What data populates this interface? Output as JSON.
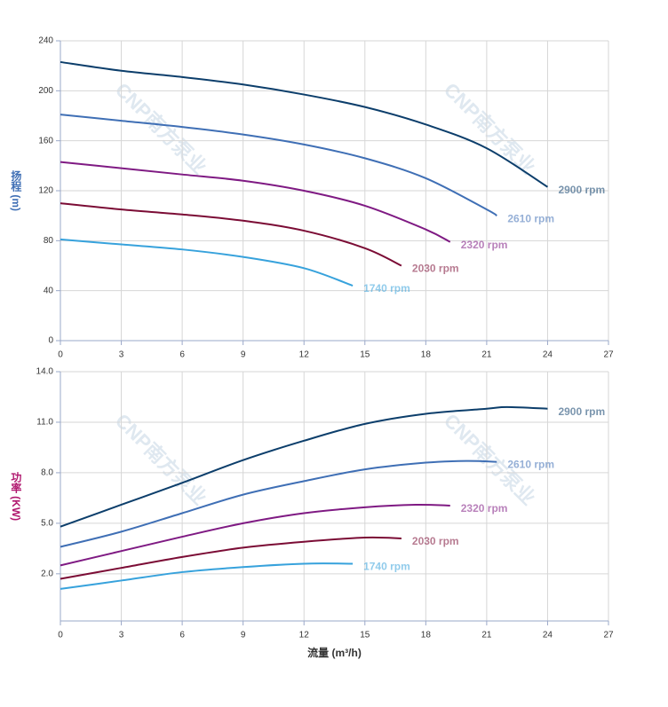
{
  "chart_data": [
    {
      "type": "line",
      "y_label": "扬程 (m)",
      "y_label_color": "#3f6fb5",
      "watermark": "CNP南方泵业",
      "xlim": [
        0,
        27
      ],
      "xticks": [
        0,
        3,
        6,
        9,
        12,
        15,
        18,
        21,
        24,
        27
      ],
      "ylim": [
        0,
        240
      ],
      "yticks": [
        0,
        40,
        80,
        120,
        160,
        200,
        240
      ],
      "grid": true,
      "series": [
        {
          "name": "2900 rpm",
          "color": "#0c3e6b",
          "x": [
            0,
            3,
            6,
            9,
            12,
            15,
            18,
            21,
            24
          ],
          "values": [
            223,
            216,
            211,
            205,
            197,
            187,
            173,
            154,
            123
          ]
        },
        {
          "name": "2610 rpm",
          "color": "#3f6fb5",
          "x": [
            0,
            3,
            6,
            9,
            12,
            15,
            18,
            21,
            21.5
          ],
          "values": [
            181,
            176,
            171,
            165,
            157,
            146,
            130,
            105,
            100
          ]
        },
        {
          "name": "2320 rpm",
          "color": "#7f1a83",
          "x": [
            0,
            3,
            6,
            9,
            12,
            15,
            18,
            19.2
          ],
          "values": [
            143,
            138,
            133,
            128,
            120,
            108,
            89,
            79
          ]
        },
        {
          "name": "2030 rpm",
          "color": "#7b0c35",
          "x": [
            0,
            3,
            6,
            9,
            12,
            15,
            16.8
          ],
          "values": [
            110,
            105,
            101,
            96,
            88,
            74,
            60
          ]
        },
        {
          "name": "1740 rpm",
          "color": "#37a2dc",
          "x": [
            0,
            3,
            6,
            9,
            12,
            14.4
          ],
          "values": [
            81,
            77,
            73,
            67,
            58,
            44
          ]
        }
      ]
    },
    {
      "type": "line",
      "y_label": "功率 (KW)",
      "y_label_color": "#b0186f",
      "x_label": "流量 (m³/h)",
      "watermark": "CNP南方泵业",
      "xlim": [
        0,
        27
      ],
      "xticks": [
        0,
        3,
        6,
        9,
        12,
        15,
        18,
        21,
        24,
        27
      ],
      "ylim": [
        -0.8,
        14
      ],
      "yticks": [
        {
          "value": 2,
          "label": "2.0"
        },
        {
          "value": 5,
          "label": "5.0"
        },
        {
          "value": 8,
          "label": "8.0"
        },
        {
          "value": 11,
          "label": "11.0"
        },
        {
          "value": 14,
          "label": "14.0"
        }
      ],
      "grid": true,
      "series": [
        {
          "name": "2900 rpm",
          "color": "#0c3e6b",
          "x": [
            0,
            3,
            6,
            9,
            12,
            15,
            18,
            21,
            22,
            24
          ],
          "values": [
            4.8,
            6.1,
            7.4,
            8.75,
            9.9,
            10.9,
            11.5,
            11.8,
            11.9,
            11.8
          ]
        },
        {
          "name": "2610 rpm",
          "color": "#3f6fb5",
          "x": [
            0,
            3,
            6,
            9,
            12,
            15,
            18,
            20,
            21.5
          ],
          "values": [
            3.6,
            4.5,
            5.6,
            6.7,
            7.5,
            8.2,
            8.6,
            8.7,
            8.65
          ]
        },
        {
          "name": "2320 rpm",
          "color": "#7f1a83",
          "x": [
            0,
            3,
            6,
            9,
            12,
            15,
            17.5,
            19.2
          ],
          "values": [
            2.5,
            3.35,
            4.2,
            5.0,
            5.6,
            5.95,
            6.1,
            6.05
          ]
        },
        {
          "name": "2030 rpm",
          "color": "#7b0c35",
          "x": [
            0,
            3,
            6,
            9,
            12,
            15,
            16.8
          ],
          "values": [
            1.7,
            2.35,
            3.0,
            3.55,
            3.9,
            4.15,
            4.1
          ]
        },
        {
          "name": "1740 rpm",
          "color": "#37a2dc",
          "x": [
            0,
            3,
            6,
            9,
            12,
            14.4
          ],
          "values": [
            1.1,
            1.6,
            2.1,
            2.4,
            2.6,
            2.6
          ]
        }
      ]
    }
  ]
}
